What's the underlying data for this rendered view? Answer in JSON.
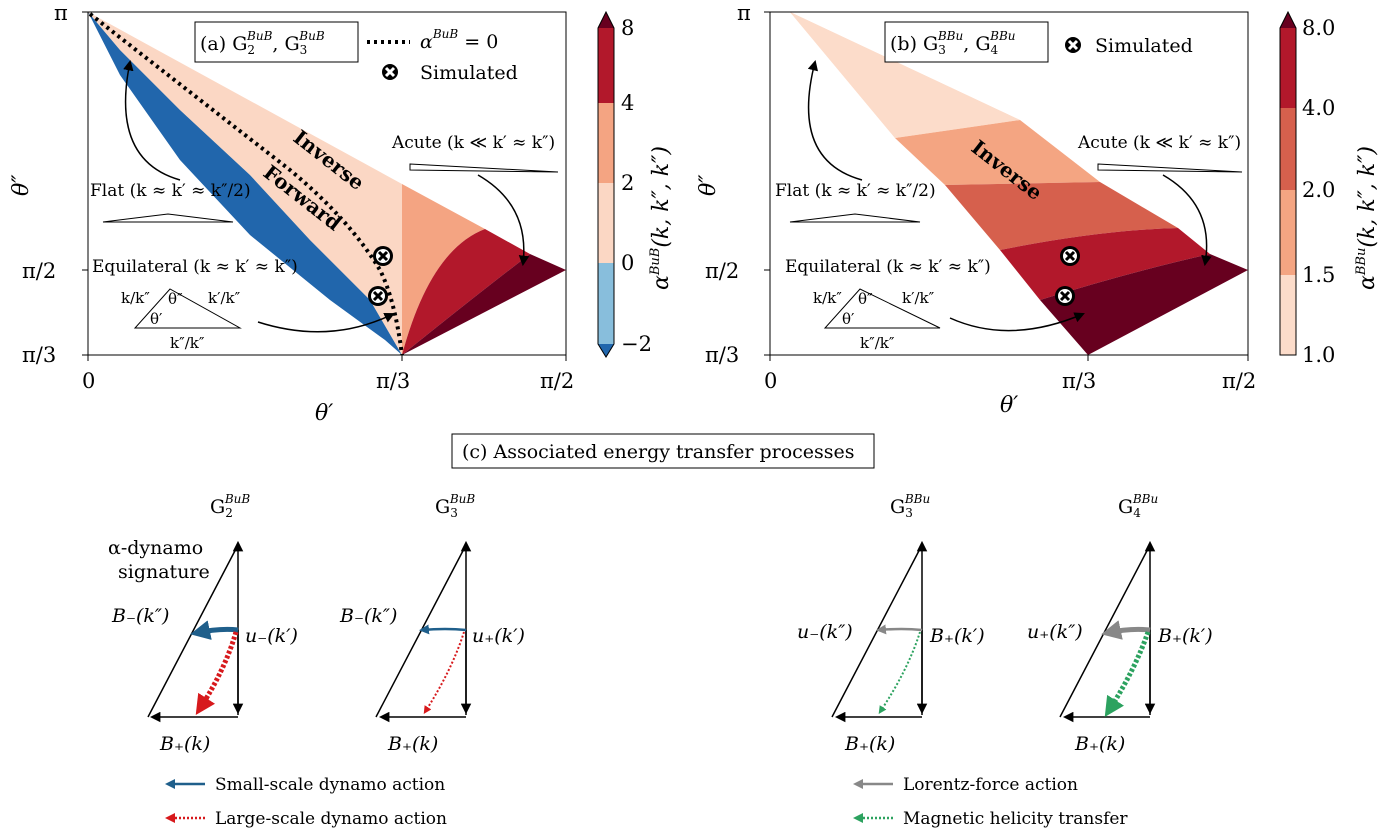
{
  "chart_data": [
    {
      "panel": "a",
      "type": "heatmap",
      "title": "(a) G₂ᴮᵘᴮ, G₃ᴮᵘᴮ",
      "xlabel": "θ′",
      "ylabel": "θ″",
      "x_ticks": [
        "0",
        "π/3",
        "π/2"
      ],
      "y_ticks": [
        "π/3",
        "π/2",
        "π"
      ],
      "xlim": [
        "0",
        "π/2"
      ],
      "ylim": [
        "π/3",
        "π"
      ],
      "colorbar": {
        "label": "α^{BuB}(k,k″,k″)",
        "ticks": [
          "−2",
          "0",
          "2",
          "4",
          "8"
        ],
        "levels": [
          -2,
          0,
          2,
          4,
          8
        ],
        "colors": [
          "#88bedc",
          "#fbd7c4",
          "#f4a482",
          "#b2182b",
          "#67001f"
        ],
        "extend": "both"
      },
      "legend": {
        "position": "top-right",
        "entries": [
          "α^{BuB} = 0",
          "Simulated"
        ]
      },
      "region_labels": [
        "Inverse",
        "Forward"
      ],
      "simulated_points": [
        [
          0.977,
          1.885
        ],
        [
          0.949,
          1.676
        ]
      ],
      "annotations": [
        "Flat (k ≈ k′ ≈ k″/2)",
        "Equilateral (k ≈ k′ ≈ k″)",
        "Acute (k ≪ k′ ≈ k″)"
      ]
    },
    {
      "panel": "b",
      "type": "heatmap",
      "title": "(b) G₃ᴮᴮᵘ, G₄ᴮᴮᵘ",
      "xlabel": "θ′",
      "ylabel": "θ″",
      "x_ticks": [
        "0",
        "π/3",
        "π/2"
      ],
      "y_ticks": [
        "π/3",
        "π/2",
        "π"
      ],
      "xlim": [
        "0",
        "π/2"
      ],
      "ylim": [
        "π/3",
        "π"
      ],
      "colorbar": {
        "label": "α^{BBu}(k,k″,k″)",
        "ticks": [
          "1.0",
          "1.5",
          "2.0",
          "4.0",
          "8.0"
        ],
        "levels": [
          1.0,
          1.5,
          2.0,
          4.0,
          8.0
        ],
        "colors": [
          "#fcdcca",
          "#f4a582",
          "#d6604d",
          "#b2182b",
          "#67001f"
        ],
        "extend": "max"
      },
      "legend": {
        "position": "top-right",
        "entries": [
          "Simulated"
        ]
      },
      "region_labels": [
        "Inverse"
      ],
      "simulated_points": [
        [
          1.009,
          1.885
        ],
        [
          0.994,
          1.665
        ]
      ],
      "annotations": [
        "Flat (k ≈ k′ ≈ k″/2)",
        "Equilateral (k ≈ k′ ≈ k″)",
        "Acute (k ≪ k′ ≈ k″)"
      ]
    }
  ],
  "texts": {
    "a_title_prefix": "(a) G",
    "b_title_prefix": "(b) G",
    "sep": ", G",
    "sup_bub": "BuB",
    "sup_bbu": "BBu",
    "sub2": "2",
    "sub3": "3",
    "sub4": "4",
    "alpha": "α",
    "eq_zero": " = 0",
    "simulated": "Simulated",
    "inverse": "Inverse",
    "forward": "Forward",
    "flat": "Flat (k ≈ k′ ≈ k″/2)",
    "equilateral": "Equilateral (k ≈ k′ ≈ k″)",
    "acute": "Acute (k ≪ k′ ≈ k″)",
    "tri_left": "k/k″",
    "tri_right": "k′/k″",
    "tri_bottom": "k″/k″",
    "tri_t1": "θ″",
    "tri_t2": "θ′",
    "xlabel": "θ′",
    "ylabel": "θ″",
    "xt0": "0",
    "xt1": "π/3",
    "xt2": "π/2",
    "yt0": "π/3",
    "yt1": "π/2",
    "yt2": "π",
    "cba_label_pre": "α",
    "cba_label_sup": "BuB",
    "cba_label_post": "(k, k″, k″)",
    "cbb_label_sup": "BBu",
    "cba_ticks": [
      "−2",
      "0",
      "2",
      "4",
      "8"
    ],
    "cbb_ticks": [
      "1.0",
      "1.5",
      "2.0",
      "4.0",
      "8.0"
    ],
    "section_c": "(c) Associated energy transfer processes",
    "alpha_dynamo": "α-dynamo",
    "signature": "signature",
    "G": "G",
    "B_minus_kpp": "B₋(k″)",
    "B_plus_k": "B₊(k)",
    "u_minus_kp": "u₋(k′)",
    "u_plus_kp": "u₊(k′)",
    "u_minus_kpp": "u₋(k″)",
    "u_plus_kpp": "u₊(k″)",
    "B_plus_kp": "B₊(k′)",
    "leg_small": "Small-scale dynamo action",
    "leg_large": "Large-scale dynamo action",
    "leg_lorentz": "Lorentz-force action",
    "leg_helicity": "Magnetic helicity transfer"
  },
  "colors": {
    "blue_dark": "#2166ac",
    "blue_light": "#88bedc",
    "red_pale": "#fcdcca",
    "red_light": "#f4a582",
    "red_mid": "#d6604d",
    "red": "#b2182b",
    "red_dark": "#67001f",
    "arrow_blue": "#1f5f8b",
    "arrow_red": "#d7191c",
    "arrow_gray": "#888888",
    "arrow_green": "#2ca25f"
  }
}
